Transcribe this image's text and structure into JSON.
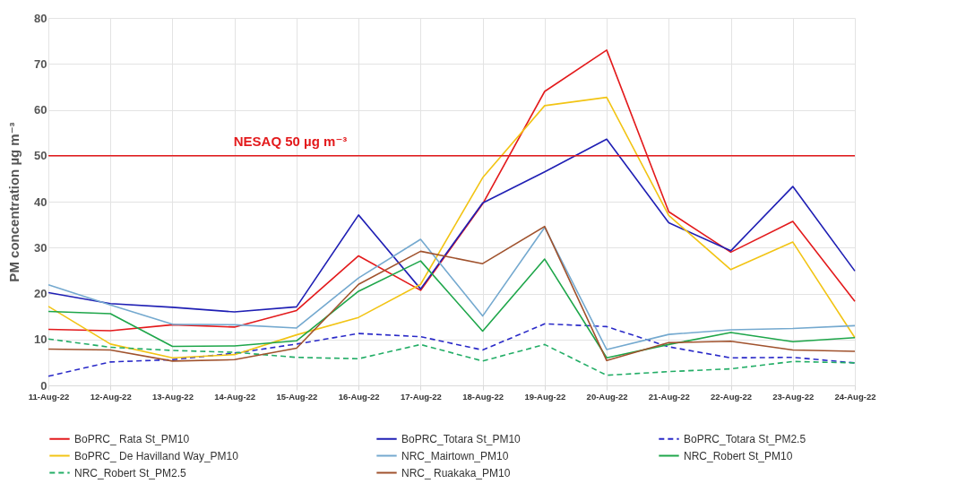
{
  "chart_data": {
    "type": "line",
    "ylabel": "PM concentration  µg m⁻³",
    "categories": [
      "11-Aug-22",
      "12-Aug-22",
      "13-Aug-22",
      "14-Aug-22",
      "15-Aug-22",
      "16-Aug-22",
      "17-Aug-22",
      "18-Aug-22",
      "19-Aug-22",
      "20-Aug-22",
      "21-Aug-22",
      "22-Aug-22",
      "23-Aug-22",
      "24-Aug-22"
    ],
    "series": [
      {
        "name": "BoPRC_ Rata St_PM10",
        "color": "#e31a1c",
        "line_style": "solid",
        "values": [
          12.2,
          11.9,
          13.2,
          12.7,
          16.3,
          28.2,
          20.7,
          39.5,
          64,
          73,
          37.8,
          29,
          35.7,
          18.3
        ]
      },
      {
        "name": "BoPRC_Totara St_PM10",
        "color": "#1f1fb4",
        "line_style": "solid",
        "values": [
          20.2,
          17.8,
          17,
          16,
          17.1,
          37.1,
          21,
          39.7,
          46.5,
          53.6,
          35.4,
          29.3,
          43.3,
          24.9
        ]
      },
      {
        "name": "BoPRC_Totara St_PM2.5",
        "color": "#2a2ac8",
        "line_style": "dashed",
        "values": [
          2,
          5.1,
          5.6,
          7,
          9,
          11.3,
          10.6,
          7.7,
          13.4,
          12.8,
          8.4,
          6,
          6.1,
          4.9
        ]
      },
      {
        "name": "BoPRC_ De Havilland Way_PM10",
        "color": "#f2c414",
        "line_style": "solid",
        "values": [
          17.2,
          9,
          6,
          6.7,
          11,
          14.8,
          22,
          45.2,
          60.9,
          62.7,
          37,
          25.2,
          31.2,
          10.4
        ]
      },
      {
        "name": "NRC_Mairtown_PM10",
        "color": "#74a9cf",
        "line_style": "solid",
        "values": [
          21.9,
          17.5,
          13.3,
          13.2,
          12.5,
          23.4,
          31.8,
          15.1,
          34.4,
          7.8,
          11.1,
          12.1,
          12.4,
          13
        ]
      },
      {
        "name": "NRC_Robert St_PM10",
        "color": "#1ea64a",
        "line_style": "solid",
        "values": [
          16.1,
          15.6,
          8.5,
          8.6,
          9.7,
          20.5,
          27.1,
          11.8,
          27.5,
          6,
          8.9,
          11.5,
          9.5,
          10.4
        ]
      },
      {
        "name": "NRC_Robert St_PM2.5",
        "color": "#22ad66",
        "line_style": "dashed",
        "values": [
          10.1,
          8.3,
          7.6,
          7.2,
          6.1,
          5.8,
          8.9,
          5.3,
          8.9,
          2.2,
          3,
          3.6,
          5.2,
          4.9
        ]
      },
      {
        "name": "NRC_ Ruakaka_PM10",
        "color": "#a0522d",
        "line_style": "solid",
        "values": [
          7.9,
          7.7,
          5.3,
          5.6,
          8.1,
          22,
          29.2,
          26.5,
          34.6,
          5.4,
          9.3,
          9.6,
          7.7,
          7.4
        ]
      }
    ],
    "ylim": [
      0,
      80
    ],
    "yticks": [
      0,
      10,
      20,
      30,
      40,
      50,
      60,
      70,
      80
    ],
    "grid": true,
    "legend": "bottom",
    "ref_lines": [
      {
        "axis": "y",
        "value": 50,
        "label": "NESAQ 50 µg m⁻³",
        "color": "#e31a1c",
        "line_style": "solid"
      }
    ]
  }
}
